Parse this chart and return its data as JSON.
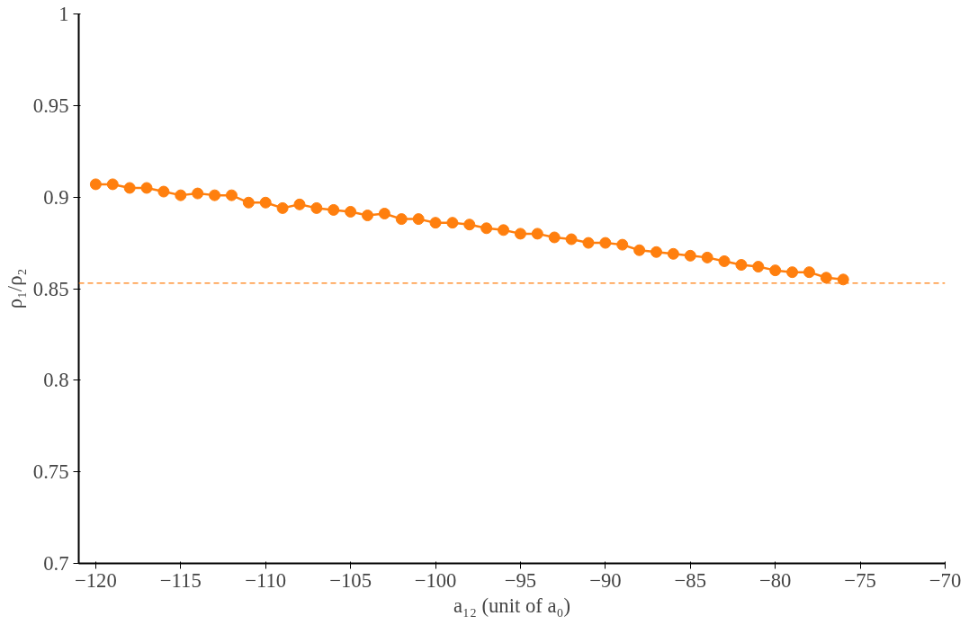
{
  "chart_data": {
    "type": "line",
    "xlabel": "a₁₂ (unit of a₀)",
    "ylabel": "ρ₁/ρ₂",
    "x": [
      -120,
      -119,
      -118,
      -117,
      -116,
      -115,
      -114,
      -113,
      -112,
      -111,
      -110,
      -109,
      -108,
      -107,
      -106,
      -105,
      -104,
      -103,
      -102,
      -101,
      -100,
      -99,
      -98,
      -97,
      -96,
      -95,
      -94,
      -93,
      -92,
      -91,
      -90,
      -89,
      -88,
      -87,
      -86,
      -85,
      -84,
      -83,
      -82,
      -81,
      -80,
      -79,
      -78,
      -77,
      -76
    ],
    "series": [
      {
        "color": "#ff7f0e",
        "values": [
          0.907,
          0.907,
          0.905,
          0.905,
          0.903,
          0.901,
          0.902,
          0.901,
          0.901,
          0.897,
          0.897,
          0.894,
          0.896,
          0.894,
          0.893,
          0.892,
          0.89,
          0.891,
          0.888,
          0.888,
          0.886,
          0.886,
          0.885,
          0.883,
          0.882,
          0.88,
          0.88,
          0.878,
          0.877,
          0.875,
          0.875,
          0.874,
          0.871,
          0.87,
          0.869,
          0.868,
          0.867,
          0.865,
          0.863,
          0.862,
          0.86,
          0.859,
          0.859,
          0.856,
          0.855
        ]
      }
    ],
    "marker": "circle",
    "line_style": "solid",
    "xlim": [
      -121,
      -70
    ],
    "ylim": [
      0.7,
      1
    ],
    "xticks": [
      {
        "value": -120,
        "label": "−120"
      },
      {
        "value": -115,
        "label": "−115"
      },
      {
        "value": -110,
        "label": "−110"
      },
      {
        "value": -105,
        "label": "−105"
      },
      {
        "value": -100,
        "label": "−100"
      },
      {
        "value": -95,
        "label": "−95"
      },
      {
        "value": -90,
        "label": "−90"
      },
      {
        "value": -85,
        "label": "−85"
      },
      {
        "value": -80,
        "label": "−80"
      },
      {
        "value": -75,
        "label": "−75"
      },
      {
        "value": -70,
        "label": "−70"
      }
    ],
    "yticks": [
      0.7,
      0.75,
      0.8,
      0.85,
      0.9,
      0.95,
      1
    ],
    "ref_lines": [
      {
        "axis": "y",
        "value": 0.853,
        "label": null,
        "color": "#ff7f0e",
        "line_style": "dashed"
      }
    ]
  }
}
